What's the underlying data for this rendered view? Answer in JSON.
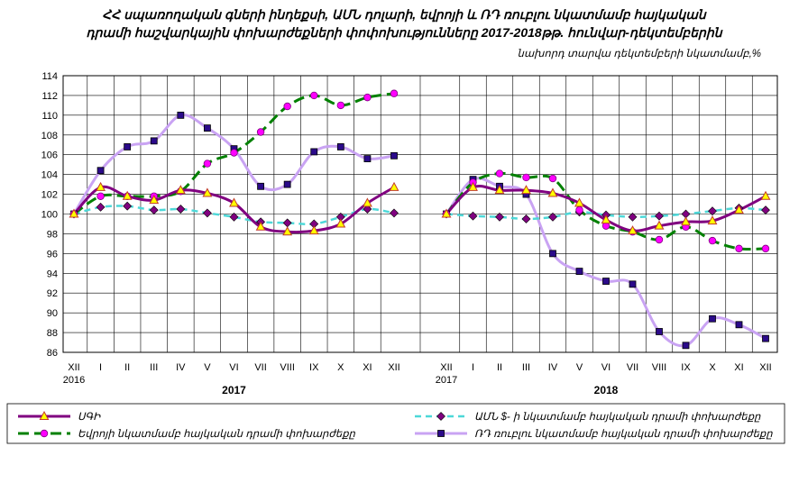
{
  "title_line1": "ՀՀ սպառողական գների ինդեքսի, ԱՄՆ դոլարի, եվրոյի և ՌԴ ռուբլու նկատմամբ հայկական",
  "title_line2": "դրամի հաշվարկային փոխարժեքների փոփոխությունները  2017-2018թթ. հունվար-դեկտեմբերին",
  "subtitle": "նախորդ տարվա դեկտեմբերի նկատմամբ,%",
  "chart_data": {
    "type": "line",
    "ylim": [
      86,
      114
    ],
    "yticks": [
      86,
      88,
      90,
      92,
      94,
      96,
      98,
      100,
      102,
      104,
      106,
      108,
      110,
      112,
      114
    ],
    "grid": true,
    "legend_position": "bottom",
    "panels": [
      {
        "year_label": "2017",
        "categories": [
          "XII",
          "I",
          "II",
          "III",
          "IV",
          "V",
          "VI",
          "VII",
          "VIII",
          "IX",
          "X",
          "XI",
          "XII"
        ],
        "first_sub": "2016",
        "series": [
          {
            "name": "ՍԳԻ",
            "values": [
              100,
              102.7,
              101.8,
              101.4,
              102.4,
              102.1,
              101.1,
              98.7,
              98.2,
              98.3,
              99.0,
              101.1,
              102.7
            ]
          },
          {
            "name": "ԱՄՆ $- ի նկատմամբ հայկական դրամի փոխարժեքը",
            "values": [
              100,
              100.7,
              100.8,
              100.4,
              100.5,
              100.1,
              99.7,
              99.2,
              99.1,
              99.0,
              99.7,
              100.5,
              100.1
            ]
          },
          {
            "name": "Եվրոյի նկատմամբ հայկական դրամի փոխարժեքը",
            "values": [
              100,
              101.8,
              101.8,
              101.8,
              102.3,
              105.1,
              106.2,
              108.3,
              110.9,
              112.0,
              111.0,
              111.8,
              112.2
            ]
          },
          {
            "name": "ՌԴ ռուբլու նկատմամբ հայկական դրամի փոխարժեքը",
            "values": [
              100,
              104.4,
              106.8,
              107.4,
              110.0,
              108.7,
              106.6,
              102.8,
              103.0,
              106.3,
              106.8,
              105.6,
              105.9
            ]
          }
        ]
      },
      {
        "year_label": "2018",
        "categories": [
          "XII",
          "I",
          "II",
          "III",
          "IV",
          "V",
          "VI",
          "VII",
          "VIII",
          "IX",
          "X",
          "XI",
          "XII"
        ],
        "first_sub": "2017",
        "series": [
          {
            "name": "ՍԳԻ",
            "values": [
              100,
              102.7,
              102.4,
              102.4,
              102.1,
              101.1,
              99.4,
              98.3,
              98.8,
              99.2,
              99.3,
              100.4,
              101.8
            ]
          },
          {
            "name": "ԱՄՆ $- ի նկատմամբ հայկական դրամի փոխարժեքը",
            "values": [
              100,
              99.8,
              99.7,
              99.5,
              99.7,
              100.2,
              99.9,
              99.7,
              99.8,
              100.0,
              100.3,
              100.6,
              100.4
            ]
          },
          {
            "name": "Եվրոյի նկատմամբ հայկական դրամի փոխարժեքը",
            "values": [
              100,
              103.2,
              104.1,
              103.7,
              103.6,
              100.4,
              98.8,
              98.2,
              97.4,
              98.7,
              97.3,
              96.5,
              96.5
            ]
          },
          {
            "name": "ՌԴ ռուբլու նկատմամբ հայկական դրամի փոխարժեքը",
            "values": [
              100,
              103.5,
              102.8,
              102.0,
              96.0,
              94.2,
              93.2,
              92.9,
              88.1,
              86.7,
              89.4,
              88.8,
              87.4
            ]
          }
        ]
      }
    ]
  },
  "legend": {
    "cpi": "ՍԳԻ",
    "usd": "ԱՄՆ $- ի նկատմամբ հայկական դրամի փոխարժեքը",
    "eur": "Եվրոյի նկատմամբ հայկական դրամի փոխարժեքը",
    "rub": "ՌԴ ռուբլու նկատմամբ հայկական դրամի փոխարժեքը"
  },
  "colors": {
    "cpi_line": "#800080",
    "cpi_marker": "#ffff00",
    "usd_line": "#4dd8d8",
    "usd_marker": "#800080",
    "eur_line": "#008000",
    "eur_marker": "#ff00ff",
    "rub_line": "#c9a3f3",
    "rub_marker": "#2b0a8a"
  }
}
